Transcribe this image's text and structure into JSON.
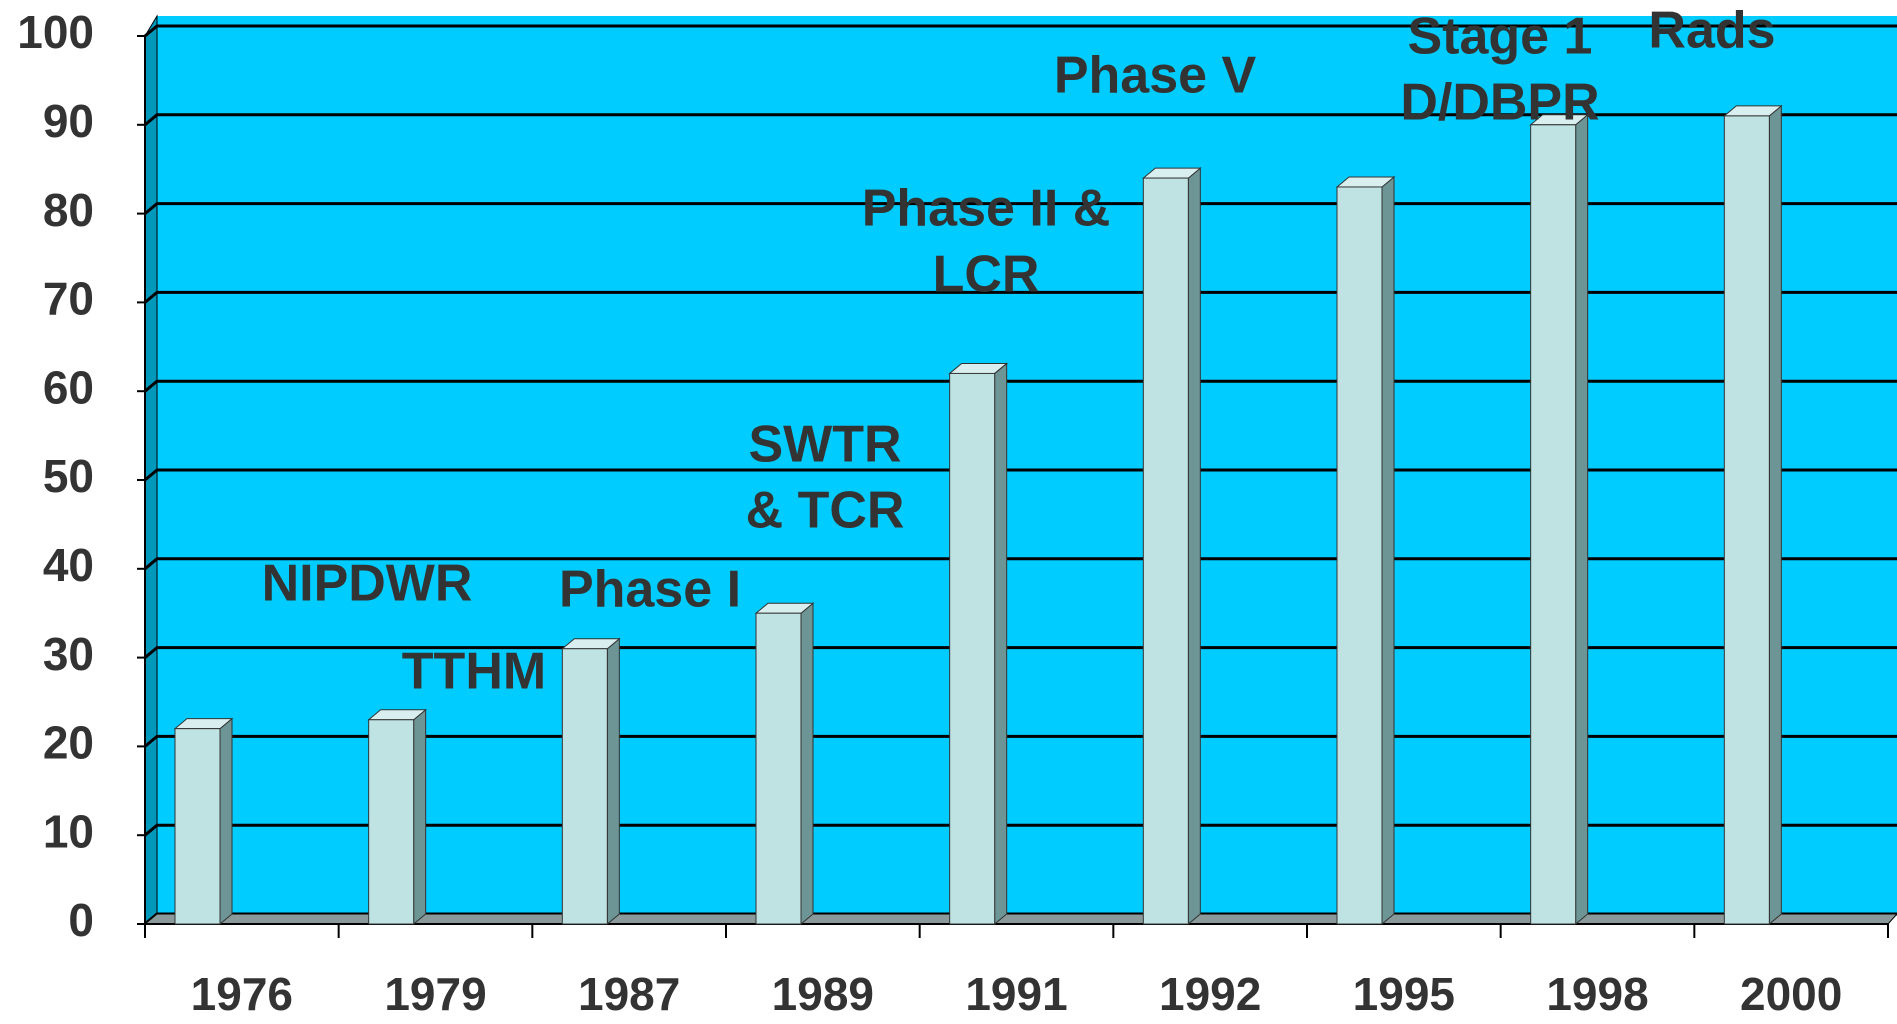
{
  "chart_data": {
    "type": "bar",
    "categories": [
      "1976",
      "1979",
      "1987",
      "1989",
      "1991",
      "1992",
      "1995",
      "1998",
      "2000"
    ],
    "values": [
      22,
      23,
      31,
      35,
      62,
      84,
      83,
      90,
      91
    ],
    "color": "#bfe3e3",
    "background": "#00ccff",
    "ylim": [
      0,
      100
    ],
    "yticks": [
      0,
      10,
      20,
      30,
      40,
      50,
      60,
      70,
      80,
      90,
      100
    ],
    "grid": true,
    "annotations": [
      {
        "lines": [
          "NIPDWR"
        ]
      },
      {
        "lines": [
          "TTHM"
        ]
      },
      {
        "lines": [
          "Phase I"
        ]
      },
      {
        "lines": [
          "SWTR",
          "& TCR"
        ]
      },
      {
        "lines": [
          "Phase II &",
          "LCR"
        ]
      },
      {
        "lines": [
          "Phase V"
        ]
      },
      {
        "lines": [
          "Stage 1",
          "D/DBPR"
        ]
      },
      {
        "lines": [
          "Rads"
        ]
      }
    ]
  }
}
